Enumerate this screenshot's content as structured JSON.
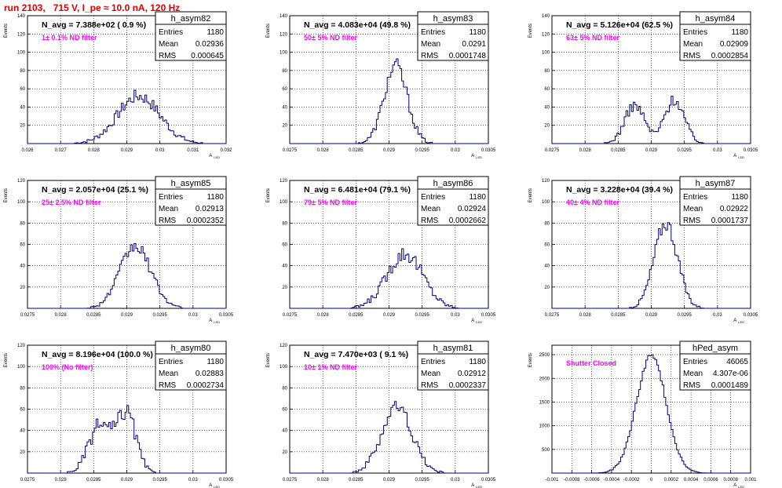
{
  "header": {
    "run_label": "run 2103,   715 V, I_pe ≈ 10.0 nA, 120 Hz"
  },
  "common": {
    "ylabel": "Events",
    "xlabel": "A",
    "xlabel_sub": "LED",
    "stats_labels": [
      "Entries",
      "Mean",
      "RMS"
    ]
  },
  "colors": {
    "histogram": "#000080",
    "annotation": "#ff00ff",
    "header": "#e00000",
    "grid": "#000000"
  },
  "chart_data": [
    {
      "type": "bar",
      "title": "h_asym82",
      "navg": "N_avg = 7.388e+02 ( 0.9 %)",
      "filter": "1± 0.1% ND filter",
      "stats": [
        "1180",
        "0.02936",
        "0.000645"
      ],
      "xlim": [
        0.026,
        0.032
      ],
      "ylim": [
        0,
        140
      ],
      "xticks": [
        0.026,
        0.027,
        0.028,
        0.029,
        0.03,
        0.031,
        0.032
      ],
      "xtick_labels": [
        "0.026",
        "0.027",
        "0.028",
        "0.029",
        "0.03",
        "0.031",
        "0.032"
      ],
      "yticks": [
        20,
        40,
        60,
        80,
        100,
        120,
        140
      ],
      "ytick_labels": [
        "20",
        "40",
        "60",
        "80",
        "100",
        "120",
        "140"
      ],
      "peaks": [
        {
          "mu": 0.02936,
          "sigma": 0.00064,
          "amp": 52
        }
      ],
      "noise": 5
    },
    {
      "type": "bar",
      "title": "h_asym83",
      "navg": "N_avg = 4.083e+04 (49.8 %)",
      "filter": "50± 5% ND filter",
      "stats": [
        "1180",
        "0.0291",
        "0.0001748"
      ],
      "xlim": [
        0.0275,
        0.0305
      ],
      "ylim": [
        0,
        140
      ],
      "xticks": [
        0.0275,
        0.028,
        0.0285,
        0.029,
        0.0295,
        0.03,
        0.0305
      ],
      "xtick_labels": [
        "0.0275",
        "0.028",
        "0.0285",
        "0.029",
        "0.0295",
        "0.03",
        "0.0305"
      ],
      "yticks": [
        20,
        40,
        60,
        80,
        100,
        120,
        140
      ],
      "ytick_labels": [
        "20",
        "40",
        "60",
        "80",
        "100",
        "120",
        "140"
      ],
      "peaks": [
        {
          "mu": 0.0291,
          "sigma": 0.000175,
          "amp": 85
        }
      ],
      "noise": 6
    },
    {
      "type": "bar",
      "title": "h_asym84",
      "navg": "N_avg = 5.126e+04 (62.5 %)",
      "filter": "63± 5% ND filter",
      "stats": [
        "1180",
        "0.02909",
        "0.0002854"
      ],
      "xlim": [
        0.0275,
        0.0305
      ],
      "ylim": [
        0,
        140
      ],
      "xticks": [
        0.0275,
        0.028,
        0.0285,
        0.029,
        0.0295,
        0.03,
        0.0305
      ],
      "xtick_labels": [
        "0.0275",
        "0.028",
        "0.0285",
        "0.029",
        "0.0295",
        "0.03",
        "0.0305"
      ],
      "yticks": [
        20,
        40,
        60,
        80,
        100,
        120,
        140
      ],
      "ytick_labels": [
        "20",
        "40",
        "60",
        "80",
        "100",
        "120",
        "140"
      ],
      "peaks": [
        {
          "mu": 0.02875,
          "sigma": 0.00015,
          "amp": 42
        },
        {
          "mu": 0.02935,
          "sigma": 0.00015,
          "amp": 48
        }
      ],
      "noise": 4
    },
    {
      "type": "bar",
      "title": "h_asym85",
      "navg": "N_avg = 2.057e+04 (25.1 %)",
      "filter": "25± 2.5% ND filter",
      "stats": [
        "1180",
        "0.02913",
        "0.0002352"
      ],
      "xlim": [
        0.0275,
        0.0305
      ],
      "ylim": [
        0,
        120
      ],
      "xticks": [
        0.0275,
        0.028,
        0.0285,
        0.029,
        0.0295,
        0.03,
        0.0305
      ],
      "xtick_labels": [
        "0.0275",
        "0.028",
        "0.0285",
        "0.029",
        "0.0295",
        "0.03",
        "0.0305"
      ],
      "yticks": [
        20,
        40,
        60,
        80,
        100,
        120
      ],
      "ytick_labels": [
        "20",
        "40",
        "60",
        "80",
        "100",
        "120"
      ],
      "peaks": [
        {
          "mu": 0.02913,
          "sigma": 0.000235,
          "amp": 58
        }
      ],
      "noise": 4
    },
    {
      "type": "bar",
      "title": "h_asym86",
      "navg": "N_avg = 6.481e+04 (79.1 %)",
      "filter": "79± 5% ND filter",
      "stats": [
        "1180",
        "0.02924",
        "0.0002662"
      ],
      "xlim": [
        0.0275,
        0.0305
      ],
      "ylim": [
        0,
        120
      ],
      "xticks": [
        0.0275,
        0.028,
        0.0285,
        0.029,
        0.0295,
        0.03,
        0.0305
      ],
      "xtick_labels": [
        "0.0275",
        "0.028",
        "0.0285",
        "0.029",
        "0.0295",
        "0.03",
        "0.0305"
      ],
      "yticks": [
        20,
        40,
        60,
        80,
        100,
        120
      ],
      "ytick_labels": [
        "20",
        "40",
        "60",
        "80",
        "100",
        "120"
      ],
      "peaks": [
        {
          "mu": 0.02924,
          "sigma": 0.00027,
          "amp": 52
        }
      ],
      "noise": 5
    },
    {
      "type": "bar",
      "title": "h_asym87",
      "navg": "N_avg = 3.228e+04 (39.4 %)",
      "filter": "40± 4% ND filter",
      "stats": [
        "1180",
        "0.02922",
        "0.0001737"
      ],
      "xlim": [
        0.0275,
        0.0305
      ],
      "ylim": [
        0,
        120
      ],
      "xticks": [
        0.0275,
        0.028,
        0.0285,
        0.029,
        0.0295,
        0.03,
        0.0305
      ],
      "xtick_labels": [
        "0.0275",
        "0.028",
        "0.0285",
        "0.029",
        "0.0295",
        "0.03",
        "0.0305"
      ],
      "yticks": [
        20,
        40,
        60,
        80,
        100,
        120
      ],
      "ytick_labels": [
        "20",
        "40",
        "60",
        "80",
        "100",
        "120"
      ],
      "peaks": [
        {
          "mu": 0.02922,
          "sigma": 0.000175,
          "amp": 80
        }
      ],
      "noise": 5
    },
    {
      "type": "bar",
      "title": "h_asym80",
      "navg": "N_avg = 8.196e+04 (100.0 %)",
      "filter": "100% (No filter)",
      "stats": [
        "1180",
        "0.02883",
        "0.0002734"
      ],
      "xlim": [
        0.0275,
        0.0305
      ],
      "ylim": [
        0,
        120
      ],
      "xticks": [
        0.0275,
        0.028,
        0.0285,
        0.029,
        0.0295,
        0.03,
        0.0305
      ],
      "xtick_labels": [
        "0.0275",
        "0.028",
        "0.0285",
        "0.029",
        "0.0295",
        "0.03",
        "0.0305"
      ],
      "yticks": [
        20,
        40,
        60,
        80,
        100,
        120
      ],
      "ytick_labels": [
        "20",
        "40",
        "60",
        "80",
        "100",
        "120"
      ],
      "peaks": [
        {
          "mu": 0.0286,
          "sigma": 0.00017,
          "amp": 45
        },
        {
          "mu": 0.029,
          "sigma": 0.00014,
          "amp": 55
        }
      ],
      "noise": 5
    },
    {
      "type": "bar",
      "title": "h_asym81",
      "navg": "N_avg = 7.470e+03 ( 9.1 %)",
      "filter": "10± 1% ND filter",
      "stats": [
        "1180",
        "0.02912",
        "0.0002337"
      ],
      "xlim": [
        0.0275,
        0.0305
      ],
      "ylim": [
        0,
        120
      ],
      "xticks": [
        0.0275,
        0.028,
        0.0285,
        0.029,
        0.0295,
        0.03,
        0.0305
      ],
      "xtick_labels": [
        "0.0275",
        "0.028",
        "0.0285",
        "0.029",
        "0.0295",
        "0.03",
        "0.0305"
      ],
      "yticks": [
        20,
        40,
        60,
        80,
        100,
        120
      ],
      "ytick_labels": [
        "20",
        "40",
        "60",
        "80",
        "100",
        "120"
      ],
      "peaks": [
        {
          "mu": 0.02912,
          "sigma": 0.00023,
          "amp": 62
        }
      ],
      "noise": 5
    },
    {
      "type": "bar",
      "title": "hPed_asym",
      "navg": "",
      "filter": "Shutter Closed",
      "stats": [
        "46065",
        "4.307e-06",
        "0.0001489"
      ],
      "xlim": [
        -0.001,
        0.001
      ],
      "ylim": [
        0,
        2700
      ],
      "xticks": [
        -0.001,
        -0.0008,
        -0.0006,
        -0.0004,
        -0.0002,
        0,
        0.0002,
        0.0004,
        0.0006,
        0.0008,
        0.001
      ],
      "xtick_labels": [
        "-0.001",
        "-0.0008",
        "-0.0006",
        "-0.0004",
        "-0.0002",
        "0",
        "0.0002",
        "0.0004",
        "0.0006",
        "0.0008",
        "0.001"
      ],
      "yticks": [
        500,
        1000,
        1500,
        2000,
        2500
      ],
      "ytick_labels": [
        "500",
        "1000",
        "1500",
        "2000",
        "2500"
      ],
      "peaks": [
        {
          "mu": 0.0,
          "sigma": 0.000149,
          "amp": 2480
        }
      ],
      "noise": 40
    }
  ]
}
